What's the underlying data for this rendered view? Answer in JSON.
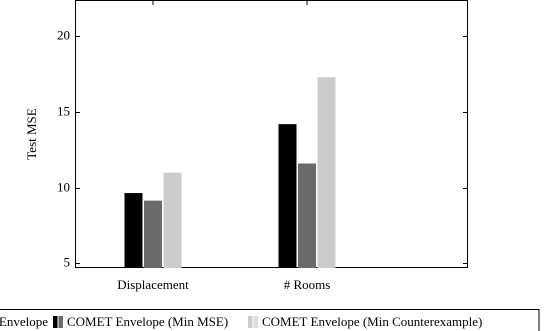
{
  "chart_data": {
    "type": "bar",
    "categories": [
      "Displacement",
      "# Rooms"
    ],
    "series": [
      {
        "name": "COMET Envelope",
        "color": "#000000",
        "values": [
          9.65,
          14.2
        ]
      },
      {
        "name": "COMET Envelope (Min MSE)",
        "color": "#6b6b6b",
        "values": [
          9.15,
          11.6
        ]
      },
      {
        "name": "COMET Envelope (Min Counterexample)",
        "color": "#cccccc",
        "values": [
          11.0,
          17.3
        ]
      }
    ],
    "ylabel": "Test MSE",
    "ylim": [
      4.7,
      22.4
    ],
    "yticks": [
      5,
      10,
      15,
      20
    ],
    "legend_position": "bottom",
    "grid": false
  }
}
